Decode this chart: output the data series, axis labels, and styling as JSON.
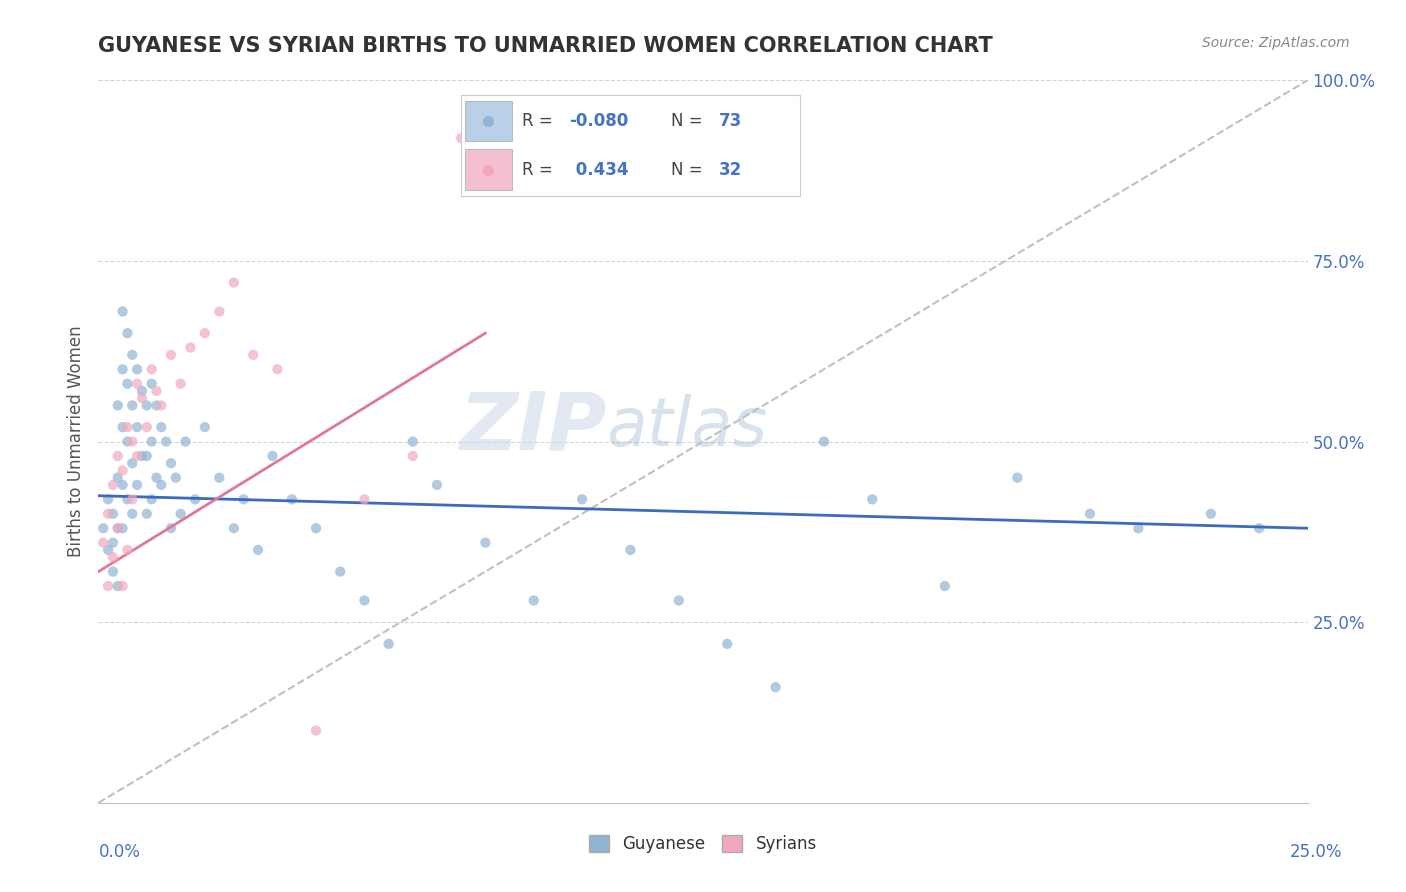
{
  "title": "GUYANESE VS SYRIAN BIRTHS TO UNMARRIED WOMEN CORRELATION CHART",
  "source": "Source: ZipAtlas.com",
  "ylabel": "Births to Unmarried Women",
  "xmin": 0.0,
  "xmax": 0.25,
  "ymin": 0.0,
  "ymax": 1.0,
  "guyanese_color": "#92b4d4",
  "syrian_color": "#f0a8bc",
  "guyanese_line_color": "#3a6bbf",
  "syrian_line_color": "#e07898",
  "legend_blue_color": "#b8d0e8",
  "legend_pink_color": "#f4c0d0",
  "watermark_color": "#ccd8e8",
  "background_color": "#ffffff",
  "grid_color": "#d0d0d0",
  "ref_line_color": "#c0c0c0",
  "r_guyanese": -0.08,
  "n_guyanese": 73,
  "r_syrian": 0.434,
  "n_syrian": 32,
  "guyanese_x": [
    0.001,
    0.002,
    0.002,
    0.003,
    0.003,
    0.003,
    0.004,
    0.004,
    0.004,
    0.004,
    0.005,
    0.005,
    0.005,
    0.005,
    0.005,
    0.006,
    0.006,
    0.006,
    0.006,
    0.007,
    0.007,
    0.007,
    0.007,
    0.008,
    0.008,
    0.008,
    0.009,
    0.009,
    0.01,
    0.01,
    0.01,
    0.011,
    0.011,
    0.011,
    0.012,
    0.012,
    0.013,
    0.013,
    0.014,
    0.015,
    0.015,
    0.016,
    0.017,
    0.018,
    0.02,
    0.022,
    0.025,
    0.028,
    0.03,
    0.033,
    0.036,
    0.04,
    0.045,
    0.05,
    0.055,
    0.06,
    0.065,
    0.07,
    0.08,
    0.09,
    0.1,
    0.11,
    0.12,
    0.13,
    0.14,
    0.15,
    0.16,
    0.175,
    0.19,
    0.205,
    0.215,
    0.23,
    0.24
  ],
  "guyanese_y": [
    0.38,
    0.35,
    0.42,
    0.4,
    0.36,
    0.32,
    0.55,
    0.45,
    0.38,
    0.3,
    0.68,
    0.6,
    0.52,
    0.44,
    0.38,
    0.65,
    0.58,
    0.5,
    0.42,
    0.62,
    0.55,
    0.47,
    0.4,
    0.6,
    0.52,
    0.44,
    0.57,
    0.48,
    0.55,
    0.48,
    0.4,
    0.58,
    0.5,
    0.42,
    0.55,
    0.45,
    0.52,
    0.44,
    0.5,
    0.47,
    0.38,
    0.45,
    0.4,
    0.5,
    0.42,
    0.52,
    0.45,
    0.38,
    0.42,
    0.35,
    0.48,
    0.42,
    0.38,
    0.32,
    0.28,
    0.22,
    0.5,
    0.44,
    0.36,
    0.28,
    0.42,
    0.35,
    0.28,
    0.22,
    0.16,
    0.5,
    0.42,
    0.3,
    0.45,
    0.4,
    0.38,
    0.4,
    0.38
  ],
  "syrian_x": [
    0.001,
    0.002,
    0.002,
    0.003,
    0.003,
    0.004,
    0.004,
    0.005,
    0.005,
    0.006,
    0.006,
    0.007,
    0.007,
    0.008,
    0.008,
    0.009,
    0.01,
    0.011,
    0.012,
    0.013,
    0.015,
    0.017,
    0.019,
    0.022,
    0.025,
    0.028,
    0.032,
    0.037,
    0.045,
    0.055,
    0.065,
    0.075
  ],
  "syrian_y": [
    0.36,
    0.4,
    0.3,
    0.44,
    0.34,
    0.48,
    0.38,
    0.46,
    0.3,
    0.52,
    0.35,
    0.5,
    0.42,
    0.58,
    0.48,
    0.56,
    0.52,
    0.6,
    0.57,
    0.55,
    0.62,
    0.58,
    0.63,
    0.65,
    0.68,
    0.72,
    0.62,
    0.6,
    0.1,
    0.42,
    0.48,
    0.92
  ],
  "guyanese_trend": [
    0.425,
    0.38
  ],
  "syrian_trend_x": [
    0.0,
    0.08
  ],
  "syrian_trend_y": [
    0.32,
    0.65
  ]
}
